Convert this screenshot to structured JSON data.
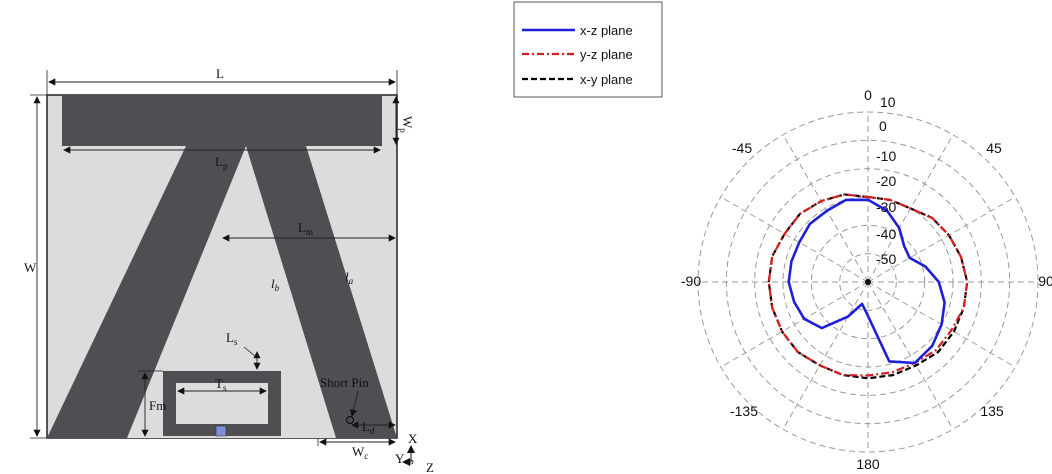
{
  "antenna": {
    "labels": {
      "L": "L",
      "W": "W",
      "Wp": "Wp",
      "Lp": "Lp",
      "Lm": "Lm",
      "lb": "lb",
      "la": "la",
      "Ls": "Ls",
      "Ts": "Ts",
      "Fm": "Fm",
      "Ld": "Ld",
      "Wc": "Wc",
      "short_pin": "Short Pin",
      "axis_x": "X",
      "axis_y": "Y",
      "axis_z": "Z"
    },
    "colors": {
      "substrate": "#dcdcdc",
      "metal": "#4f4f53",
      "feed": "#7b8fd8"
    }
  },
  "polar": {
    "legend": [
      {
        "label": "x-z plane",
        "color": "#1f1fd8",
        "dash": "solid"
      },
      {
        "label": "y-z plane",
        "color": "#d81f1f",
        "dash": "dash-dot"
      },
      {
        "label": "x-y plane",
        "color": "#000000",
        "dash": "dashed"
      }
    ],
    "angle_labels": {
      "a0": "0",
      "a45": "45",
      "a90": "90",
      "a135": "135",
      "a180": "180",
      "am135": "-135",
      "am90": "-90",
      "am45": "-45"
    },
    "radial_labels": [
      "10",
      "0",
      "-10",
      "-20",
      "-30",
      "-40",
      "-50"
    ]
  },
  "chart_data": {
    "type": "polar",
    "title": "",
    "theta_unit": "degrees",
    "r_range": [
      -50,
      10
    ],
    "r_ticks": [
      10,
      0,
      -10,
      -20,
      -30,
      -40,
      -50
    ],
    "theta_ticks": [
      0,
      45,
      90,
      135,
      180,
      -135,
      -90,
      -45
    ],
    "grid": true,
    "legend_position": "top-left",
    "series": [
      {
        "name": "x-z plane",
        "color": "#1f1fd8",
        "theta": [
          0,
          15,
          30,
          45,
          60,
          75,
          90,
          105,
          120,
          135,
          150,
          165,
          180,
          195,
          210,
          225,
          240,
          255,
          270,
          285,
          300,
          315,
          330,
          345
        ],
        "r": [
          -21,
          -24,
          -28,
          -32,
          -33,
          -29,
          -25,
          -22,
          -20,
          -18,
          -17,
          -21,
          -38,
          -42,
          -36,
          -27,
          -24,
          -23,
          -22,
          -22,
          -22,
          -21,
          -21,
          -20
        ]
      },
      {
        "name": "y-z plane",
        "color": "#d81f1f",
        "theta": [
          0,
          15,
          30,
          45,
          60,
          75,
          90,
          105,
          120,
          135,
          150,
          165,
          180,
          195,
          210,
          225,
          240,
          255,
          270,
          285,
          300,
          315,
          330,
          345
        ],
        "r": [
          -20,
          -20,
          -20,
          -18,
          -17,
          -16,
          -15,
          -15,
          -16,
          -16,
          -17,
          -17,
          -17,
          -16,
          -16,
          -15,
          -15,
          -15,
          -15,
          -15,
          -16,
          -16,
          -17,
          -18
        ]
      },
      {
        "name": "x-y plane",
        "color": "#000000",
        "theta": [
          0,
          15,
          30,
          45,
          60,
          75,
          90,
          105,
          120,
          135,
          150,
          165,
          180,
          195,
          210,
          225,
          240,
          255,
          270,
          285,
          300,
          315,
          330,
          345
        ],
        "r": [
          -20,
          -20,
          -20,
          -18,
          -17,
          -16,
          -15,
          -15,
          -15,
          -15,
          -16,
          -16,
          -16,
          -16,
          -16,
          -15,
          -15,
          -15,
          -15,
          -15,
          -16,
          -16,
          -17,
          -18
        ]
      }
    ]
  }
}
